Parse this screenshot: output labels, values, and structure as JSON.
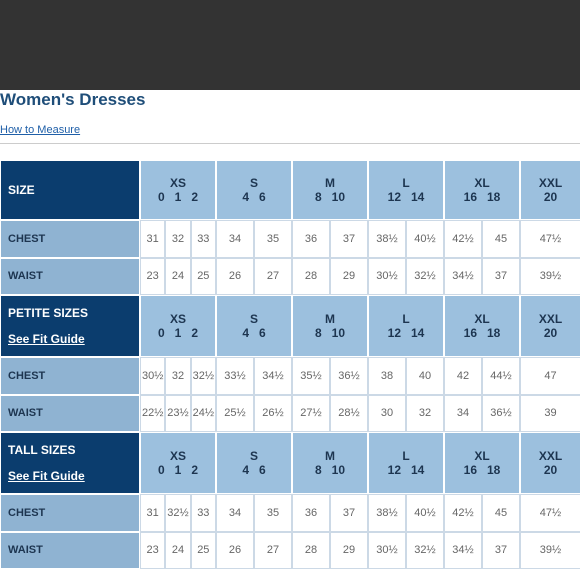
{
  "header": {
    "title": "Women's Dresses",
    "link": "How to Measure"
  },
  "groups": [
    {
      "name": "XS",
      "sizes": [
        "0",
        "1",
        "2"
      ]
    },
    {
      "name": "S",
      "sizes": [
        "4",
        "6"
      ]
    },
    {
      "name": "M",
      "sizes": [
        "8",
        "10"
      ]
    },
    {
      "name": "L",
      "sizes": [
        "12",
        "14"
      ]
    },
    {
      "name": "XL",
      "sizes": [
        "16",
        "18"
      ]
    },
    {
      "name": "XXL",
      "sizes": [
        "20"
      ]
    }
  ],
  "sections": [
    {
      "title": "SIZE",
      "rows": [
        {
          "label": "CHEST",
          "values": [
            "31",
            "32",
            "33",
            "34",
            "35",
            "36",
            "37",
            "38½",
            "40½",
            "42½",
            "45",
            "47½"
          ]
        },
        {
          "label": "WAIST",
          "values": [
            "23",
            "24",
            "25",
            "26",
            "27",
            "28",
            "29",
            "30½",
            "32½",
            "34½",
            "37",
            "39½"
          ]
        }
      ]
    },
    {
      "title": "PETITE SIZES",
      "link": "See Fit Guide",
      "rows": [
        {
          "label": "CHEST",
          "values": [
            "30½",
            "32",
            "32½",
            "33½",
            "34½",
            "35½",
            "36½",
            "38",
            "40",
            "42",
            "44½",
            "47"
          ]
        },
        {
          "label": "WAIST",
          "values": [
            "22½",
            "23½",
            "24½",
            "25½",
            "26½",
            "27½",
            "28½",
            "30",
            "32",
            "34",
            "36½",
            "39"
          ]
        }
      ]
    },
    {
      "title": "TALL SIZES",
      "link": "See Fit Guide",
      "rows": [
        {
          "label": "CHEST",
          "values": [
            "31",
            "32½",
            "33",
            "34",
            "35",
            "36",
            "37",
            "38½",
            "40½",
            "42½",
            "45",
            "47½"
          ]
        },
        {
          "label": "WAIST",
          "values": [
            "23",
            "24",
            "25",
            "26",
            "27",
            "28",
            "29",
            "30½",
            "32½",
            "34½",
            "37",
            "39½"
          ]
        }
      ]
    }
  ]
}
